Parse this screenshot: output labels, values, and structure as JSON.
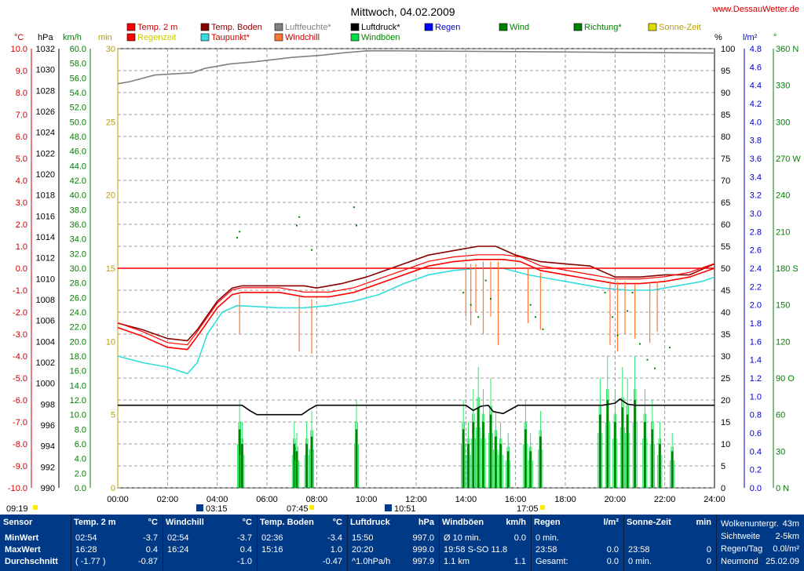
{
  "title": "Mittwoch, 04.02.2009",
  "site": "www.DessauWetter.de",
  "legend": [
    {
      "label": "Temp. 2 m",
      "color": "#ff0000",
      "textColor": "#cc0000"
    },
    {
      "label": "Temp. Boden",
      "color": "#880000",
      "textColor": "#880000"
    },
    {
      "label": "Luftfeuchte*",
      "color": "#808080",
      "textColor": "#808080"
    },
    {
      "label": "Luftdruck*",
      "color": "#000000",
      "textColor": "#000000"
    },
    {
      "label": "Regen",
      "color": "#0000ff",
      "textColor": "#0000cc"
    },
    {
      "label": "Wind",
      "color": "#008000",
      "textColor": "#008000"
    },
    {
      "label": "Richtung*",
      "color": "#008000",
      "textColor": "#008000"
    },
    {
      "label": "Sonne-Zeit",
      "color": "#dddd00",
      "textColor": "#b8a000"
    },
    {
      "label": "Regenzeit",
      "color": "#ff0000",
      "textColor": "#cccc00"
    },
    {
      "label": "Taupunkt*",
      "color": "#33dddd",
      "textColor": "#cc0000"
    },
    {
      "label": "Windchill",
      "color": "#ff7733",
      "textColor": "#cc0000"
    },
    {
      "label": "Windböen",
      "color": "#00dd44",
      "textColor": "#008000"
    }
  ],
  "axes": {
    "temp": {
      "unit": "°C",
      "min": -10,
      "max": 10,
      "step": 1,
      "color": "#ff0000"
    },
    "pressure": {
      "unit": "hPa",
      "min": 990,
      "max": 1032,
      "step": 2,
      "color": "#000000"
    },
    "wind": {
      "unit": "km/h",
      "min": 0,
      "max": 60,
      "step": 2,
      "color": "#008000"
    },
    "minutes": {
      "unit": "min",
      "min": 0,
      "max": 30,
      "step": 5,
      "color": "#cccc00"
    },
    "humidity": {
      "unit": "%",
      "min": 0,
      "max": 100,
      "step": 5,
      "color": "#000000"
    },
    "rain": {
      "unit": "l/m²",
      "min": 0,
      "max": 4.8,
      "step": 0.2,
      "color": "#0000ff"
    },
    "direction": {
      "unit": "°",
      "min": 0,
      "max": 360,
      "step": 30,
      "color": "#008000",
      "labels": {
        "0": "0 N",
        "90": "90 O",
        "180": "180 S",
        "270": "270 W",
        "360": "360 N"
      }
    },
    "time": {
      "ticks": [
        "00:00",
        "02:00",
        "04:00",
        "06:00",
        "08:00",
        "10:00",
        "12:00",
        "14:00",
        "16:00",
        "18:00",
        "20:00",
        "22:00",
        "24:00"
      ]
    }
  },
  "annotations": {
    "sunrise": "07:45",
    "sunset": "17:05",
    "left_time": "09:19",
    "moon1": "03:15",
    "moon2": "10:51"
  },
  "chart_data": {
    "type": "line",
    "title": "Mittwoch, 04.02.2009",
    "x_unit": "hours",
    "series": [
      {
        "name": "Luftfeuchte*",
        "axis": "humidity",
        "color": "#808080",
        "points": [
          [
            0,
            92
          ],
          [
            0.5,
            92.5
          ],
          [
            1.5,
            94
          ],
          [
            3,
            94.5
          ],
          [
            3.5,
            95.5
          ],
          [
            4,
            96
          ],
          [
            4.5,
            96.5
          ],
          [
            5.5,
            97
          ],
          [
            7,
            98
          ],
          [
            8.2,
            98.5
          ],
          [
            9,
            99
          ],
          [
            10,
            99.5
          ],
          [
            11,
            99.5
          ],
          [
            24,
            99
          ]
        ]
      },
      {
        "name": "Temp. Boden",
        "axis": "temp",
        "color": "#880000",
        "points": [
          [
            0,
            -2.5
          ],
          [
            1,
            -2.8
          ],
          [
            2,
            -3.2
          ],
          [
            2.8,
            -3.3
          ],
          [
            3.2,
            -2.8
          ],
          [
            4,
            -1.5
          ],
          [
            4.6,
            -0.9
          ],
          [
            5,
            -0.8
          ],
          [
            7.5,
            -0.8
          ],
          [
            8,
            -0.9
          ],
          [
            9,
            -0.7
          ],
          [
            10,
            -0.4
          ],
          [
            11.5,
            0.2
          ],
          [
            12.5,
            0.6
          ],
          [
            13.5,
            0.8
          ],
          [
            14.5,
            1.0
          ],
          [
            15.2,
            1.0
          ],
          [
            16,
            0.6
          ],
          [
            17,
            0.3
          ],
          [
            18,
            0.2
          ],
          [
            19,
            0.1
          ],
          [
            20,
            -0.4
          ],
          [
            21,
            -0.4
          ],
          [
            22,
            -0.3
          ],
          [
            23,
            -0.3
          ],
          [
            24,
            0.2
          ]
        ]
      },
      {
        "name": "Temp. 2 m",
        "axis": "temp",
        "color": "#ff0000",
        "points": [
          [
            0,
            -2.7
          ],
          [
            1,
            -3.1
          ],
          [
            2,
            -3.6
          ],
          [
            2.8,
            -3.7
          ],
          [
            3.2,
            -3.1
          ],
          [
            4,
            -1.8
          ],
          [
            4.6,
            -1.2
          ],
          [
            5,
            -1.1
          ],
          [
            6.5,
            -1.1
          ],
          [
            7.5,
            -1.3
          ],
          [
            8.5,
            -1.3
          ],
          [
            9.5,
            -1.1
          ],
          [
            10.5,
            -0.7
          ],
          [
            11.5,
            -0.3
          ],
          [
            12.5,
            0.1
          ],
          [
            13.5,
            0.3
          ],
          [
            14.5,
            0.4
          ],
          [
            15.5,
            0.4
          ],
          [
            16.2,
            0.3
          ],
          [
            17,
            -0.1
          ],
          [
            18,
            -0.3
          ],
          [
            19,
            -0.5
          ],
          [
            20,
            -0.7
          ],
          [
            21,
            -0.7
          ],
          [
            22,
            -0.6
          ],
          [
            23,
            -0.4
          ],
          [
            24,
            0.0
          ]
        ]
      },
      {
        "name": "Taupunkt*",
        "axis": "temp",
        "color": "#33dddd",
        "points": [
          [
            0,
            -4.0
          ],
          [
            1,
            -4.3
          ],
          [
            2,
            -4.5
          ],
          [
            2.8,
            -4.8
          ],
          [
            3.2,
            -4.3
          ],
          [
            3.6,
            -3.0
          ],
          [
            4.2,
            -2.0
          ],
          [
            4.8,
            -1.7
          ],
          [
            6.5,
            -1.8
          ],
          [
            7.5,
            -1.8
          ],
          [
            8.5,
            -1.7
          ],
          [
            9.5,
            -1.5
          ],
          [
            10.5,
            -1.2
          ],
          [
            11.5,
            -0.7
          ],
          [
            12.5,
            -0.3
          ],
          [
            13.5,
            -0.1
          ],
          [
            14.5,
            0.0
          ],
          [
            15.5,
            0.0
          ],
          [
            16.5,
            -0.3
          ],
          [
            17.5,
            -0.5
          ],
          [
            18.5,
            -0.7
          ],
          [
            19.5,
            -0.9
          ],
          [
            20.5,
            -1.0
          ],
          [
            21.5,
            -1.0
          ],
          [
            22.5,
            -0.8
          ],
          [
            23.5,
            -0.6
          ],
          [
            24,
            -0.4
          ]
        ]
      },
      {
        "name": "Luftdruck*",
        "axis": "pressure",
        "color": "#000000",
        "points": [
          [
            0,
            997.9
          ],
          [
            5,
            997.9
          ],
          [
            5.3,
            997.4
          ],
          [
            5.6,
            997.0
          ],
          [
            7.4,
            997.0
          ],
          [
            7.7,
            997.5
          ],
          [
            8,
            997.9
          ],
          [
            14,
            997.9
          ],
          [
            14.3,
            997.4
          ],
          [
            14.6,
            997.8
          ],
          [
            14.9,
            997.9
          ],
          [
            15.1,
            997.3
          ],
          [
            15.5,
            997.1
          ],
          [
            15.8,
            997.5
          ],
          [
            16.1,
            997.9
          ],
          [
            19.5,
            997.9
          ],
          [
            20.0,
            998.1
          ],
          [
            20.2,
            998.5
          ],
          [
            20.5,
            998.0
          ],
          [
            20.8,
            997.9
          ],
          [
            24,
            997.9
          ]
        ]
      },
      {
        "name": "Regenzeit",
        "axis": "temp",
        "color": "#ff0000",
        "points": [
          [
            0,
            0
          ],
          [
            24,
            0
          ]
        ]
      }
    ],
    "windchill_dips": [
      [
        4.9,
        -1.2,
        -3.0
      ],
      [
        7.3,
        -1.3,
        -3.8
      ],
      [
        7.8,
        -1.4,
        -3.9
      ],
      [
        14.0,
        0.2,
        -2.2
      ],
      [
        14.2,
        0.2,
        -2.6
      ],
      [
        14.4,
        0.2,
        -2.0
      ],
      [
        14.7,
        0.3,
        -3.0
      ],
      [
        15.0,
        0.3,
        -2.2
      ],
      [
        15.3,
        0.3,
        -3.5
      ],
      [
        16.5,
        0.0,
        -2.5
      ],
      [
        17.0,
        -0.2,
        -2.8
      ],
      [
        19.8,
        -0.6,
        -3.5
      ],
      [
        20.1,
        -0.6,
        -3.8
      ],
      [
        20.4,
        -0.6,
        -3.0
      ],
      [
        20.8,
        -0.7,
        -3.2
      ],
      [
        21.4,
        -0.7,
        -3.4
      ],
      [
        21.7,
        -0.6,
        -2.9
      ]
    ],
    "wind_bars": [
      [
        4.9,
        8
      ],
      [
        5.0,
        6
      ],
      [
        7.1,
        6
      ],
      [
        7.2,
        5
      ],
      [
        7.6,
        6
      ],
      [
        7.8,
        7
      ],
      [
        9.6,
        8
      ],
      [
        13.9,
        8
      ],
      [
        14.1,
        6
      ],
      [
        14.3,
        9
      ],
      [
        14.5,
        11
      ],
      [
        14.7,
        9
      ],
      [
        15.0,
        10
      ],
      [
        15.2,
        7
      ],
      [
        15.4,
        6
      ],
      [
        15.7,
        5
      ],
      [
        16.4,
        8
      ],
      [
        16.6,
        5
      ],
      [
        17.0,
        7
      ],
      [
        19.4,
        10
      ],
      [
        19.7,
        12
      ],
      [
        20.0,
        9
      ],
      [
        20.3,
        11
      ],
      [
        20.5,
        10
      ],
      [
        20.8,
        12
      ],
      [
        21.2,
        9
      ],
      [
        21.5,
        8
      ],
      [
        21.8,
        6
      ],
      [
        22.3,
        5
      ]
    ],
    "direction_points": [
      [
        4.8,
        205
      ],
      [
        4.9,
        210
      ],
      [
        7.2,
        215
      ],
      [
        7.3,
        222
      ],
      [
        7.8,
        195
      ],
      [
        9.5,
        230
      ],
      [
        9.6,
        215
      ],
      [
        13.9,
        160
      ],
      [
        14.2,
        150
      ],
      [
        14.5,
        140
      ],
      [
        14.8,
        170
      ],
      [
        15.0,
        155
      ],
      [
        16.6,
        150
      ],
      [
        16.8,
        140
      ],
      [
        17.1,
        130
      ],
      [
        19.6,
        160
      ],
      [
        19.9,
        140
      ],
      [
        20.1,
        125
      ],
      [
        20.5,
        145
      ],
      [
        20.7,
        160
      ],
      [
        21.0,
        118
      ],
      [
        21.3,
        105
      ],
      [
        21.6,
        98
      ],
      [
        22.2,
        115
      ]
    ],
    "bottom_table": {
      "sensor": {
        "head": "Sensor",
        "rows": [
          "MinWert",
          "MaxWert",
          "Durchschnitt"
        ]
      },
      "temp2m": {
        "head": "Temp. 2 m",
        "unit": "°C",
        "rows": [
          [
            "02:54",
            "-3.7"
          ],
          [
            "16:28",
            "0.4"
          ],
          [
            "( -1.77 )",
            "-0.87"
          ]
        ]
      },
      "windchill": {
        "head": "Windchill",
        "unit": "°C",
        "rows": [
          [
            "02:54",
            "-3.7"
          ],
          [
            "16:24",
            "0.4"
          ],
          [
            "",
            "-1.0"
          ]
        ]
      },
      "boden": {
        "head": "Temp. Boden",
        "unit": "°C",
        "rows": [
          [
            "02:36",
            "-3.4"
          ],
          [
            "15:16",
            "1.0"
          ],
          [
            "",
            "-0.47"
          ]
        ]
      },
      "luftdruck": {
        "head": "Luftdruck",
        "unit": "hPa",
        "rows": [
          [
            "15:50",
            "997.0"
          ],
          [
            "20:20",
            "999.0"
          ],
          [
            "^1.0hPa/h",
            "997.9"
          ]
        ]
      },
      "windboen": {
        "head": "Windböen",
        "unit": "km/h",
        "rows": [
          [
            "Ø 10 min.",
            "0.0"
          ],
          [
            "19:58   S-SO 11.8",
            ""
          ],
          [
            "1.1 km",
            "1.1"
          ]
        ]
      },
      "regen": {
        "head": "Regen",
        "unit": "l/m²",
        "rows": [
          [
            "0 min.",
            ""
          ],
          [
            "23:58",
            "0.0"
          ],
          [
            "Gesamt:",
            "0.0"
          ]
        ]
      },
      "sonne": {
        "head": "Sonne-Zeit",
        "unit": "min",
        "rows": [
          [
            "",
            ""
          ],
          [
            "23:58",
            "0"
          ],
          [
            "0 min.",
            "0"
          ]
        ]
      },
      "info": {
        "rows": [
          [
            "Wolkenuntergr.",
            "43m"
          ],
          [
            "Sichtweite",
            "2-5km"
          ],
          [
            "Regen/Tag",
            "0.0l/m²"
          ],
          [
            "Neumond",
            "25.02.09"
          ]
        ]
      }
    }
  }
}
